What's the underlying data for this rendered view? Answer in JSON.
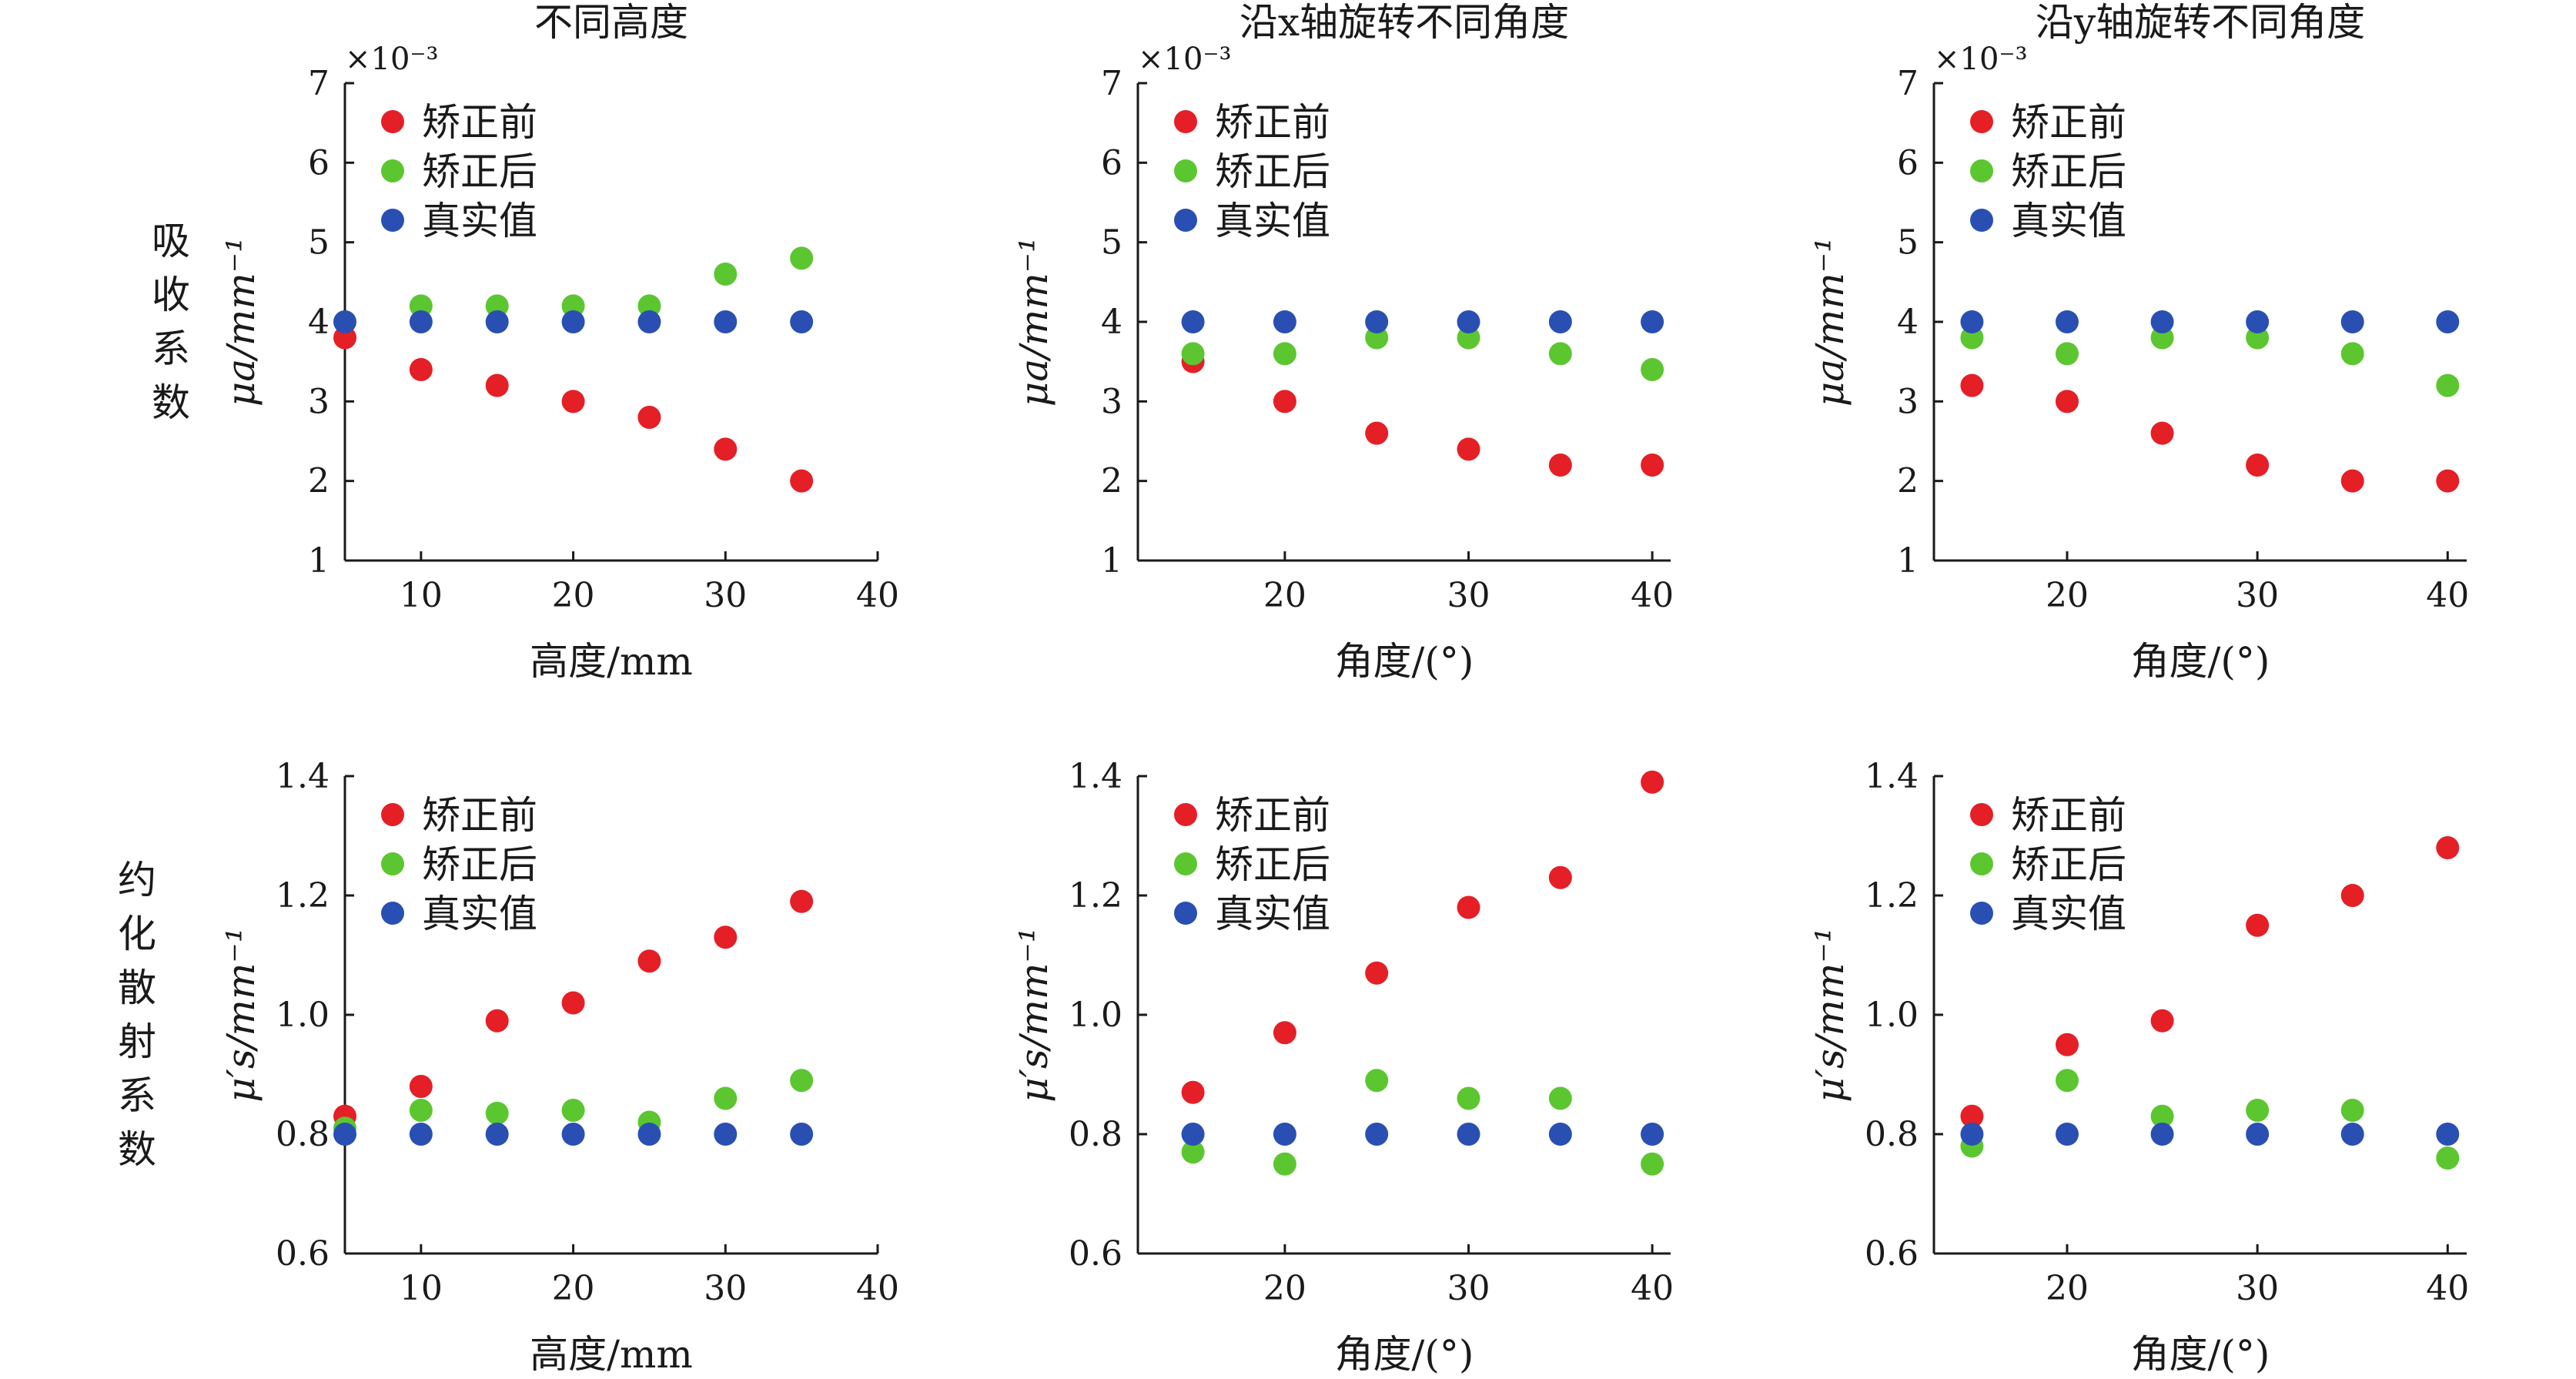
{
  "row_labels": [
    "吸\n收\n系\n数",
    "约\n化\n散\n射\n系\n数"
  ],
  "legend": [
    {
      "label": "矫正前",
      "color": "#e41f26"
    },
    {
      "label": "矫正后",
      "color": "#5cc630"
    },
    {
      "label": "真实值",
      "color": "#2a4fb3"
    }
  ],
  "chart_data": [
    {
      "type": "scatter",
      "title": "不同高度",
      "xlabel": "高度/mm",
      "ylabel": "μa/mm⁻¹",
      "sci_multiplier": "×10⁻³",
      "xlim": [
        5,
        40
      ],
      "ylim": [
        1,
        7
      ],
      "xticks": [
        10,
        20,
        30,
        40
      ],
      "yticks": [
        1,
        2,
        3,
        4,
        5,
        6,
        7
      ],
      "ytick_decimals": 0,
      "series": [
        {
          "name": "矫正前",
          "x": [
            5,
            10,
            15,
            20,
            25,
            30,
            35
          ],
          "y": [
            3.8,
            3.4,
            3.2,
            3.0,
            2.8,
            2.4,
            2.0
          ]
        },
        {
          "name": "矫正后",
          "x": [
            10,
            15,
            20,
            25,
            30,
            35
          ],
          "y": [
            4.2,
            4.2,
            4.2,
            4.2,
            4.6,
            4.8
          ]
        },
        {
          "name": "真实值",
          "x": [
            5,
            10,
            15,
            20,
            25,
            30,
            35
          ],
          "y": [
            4.0,
            4.0,
            4.0,
            4.0,
            4.0,
            4.0,
            4.0
          ]
        }
      ]
    },
    {
      "type": "scatter",
      "title": "沿x轴旋转不同角度",
      "xlabel": "角度/(°)",
      "ylabel": "μa/mm⁻¹",
      "sci_multiplier": "×10⁻³",
      "xlim": [
        12,
        41
      ],
      "ylim": [
        1,
        7
      ],
      "xticks": [
        20,
        30,
        40
      ],
      "yticks": [
        1,
        2,
        3,
        4,
        5,
        6,
        7
      ],
      "ytick_decimals": 0,
      "series": [
        {
          "name": "矫正前",
          "x": [
            15,
            20,
            25,
            30,
            35,
            40
          ],
          "y": [
            3.5,
            3.0,
            2.6,
            2.4,
            2.2,
            2.2
          ]
        },
        {
          "name": "矫正后",
          "x": [
            15,
            20,
            25,
            30,
            35,
            40
          ],
          "y": [
            3.6,
            3.6,
            3.8,
            3.8,
            3.6,
            3.4
          ]
        },
        {
          "name": "真实值",
          "x": [
            15,
            20,
            25,
            30,
            35,
            40
          ],
          "y": [
            4.0,
            4.0,
            4.0,
            4.0,
            4.0,
            4.0
          ]
        }
      ]
    },
    {
      "type": "scatter",
      "title": "沿y轴旋转不同角度",
      "xlabel": "角度/(°)",
      "ylabel": "μa/mm⁻¹",
      "sci_multiplier": "×10⁻³",
      "xlim": [
        13,
        41
      ],
      "ylim": [
        1,
        7
      ],
      "xticks": [
        20,
        30,
        40
      ],
      "yticks": [
        1,
        2,
        3,
        4,
        5,
        6,
        7
      ],
      "ytick_decimals": 0,
      "series": [
        {
          "name": "矫正前",
          "x": [
            15,
            20,
            25,
            30,
            35,
            40
          ],
          "y": [
            3.2,
            3.0,
            2.6,
            2.2,
            2.0,
            2.0
          ]
        },
        {
          "name": "矫正后",
          "x": [
            15,
            20,
            25,
            30,
            35,
            40
          ],
          "y": [
            3.8,
            3.6,
            3.8,
            3.8,
            3.6,
            3.2
          ]
        },
        {
          "name": "真实值",
          "x": [
            15,
            20,
            25,
            30,
            35,
            40
          ],
          "y": [
            4.0,
            4.0,
            4.0,
            4.0,
            4.0,
            4.0
          ]
        }
      ]
    },
    {
      "type": "scatter",
      "title": "",
      "xlabel": "高度/mm",
      "ylabel": "μ′s/mm⁻¹",
      "sci_multiplier": "",
      "xlim": [
        5,
        40
      ],
      "ylim": [
        0.6,
        1.4
      ],
      "xticks": [
        10,
        20,
        30,
        40
      ],
      "yticks": [
        0.6,
        0.8,
        1.0,
        1.2,
        1.4
      ],
      "ytick_decimals": 1,
      "series": [
        {
          "name": "矫正前",
          "x": [
            5,
            10,
            15,
            20,
            25,
            30,
            35
          ],
          "y": [
            0.83,
            0.88,
            0.99,
            1.02,
            1.09,
            1.13,
            1.19
          ]
        },
        {
          "name": "矫正后",
          "x": [
            5,
            10,
            15,
            20,
            25,
            30,
            35
          ],
          "y": [
            0.81,
            0.84,
            0.835,
            0.84,
            0.82,
            0.86,
            0.89
          ]
        },
        {
          "name": "真实值",
          "x": [
            5,
            10,
            15,
            20,
            25,
            30,
            35
          ],
          "y": [
            0.8,
            0.8,
            0.8,
            0.8,
            0.8,
            0.8,
            0.8
          ]
        }
      ]
    },
    {
      "type": "scatter",
      "title": "",
      "xlabel": "角度/(°)",
      "ylabel": "μ′s/mm⁻¹",
      "sci_multiplier": "",
      "xlim": [
        12,
        41
      ],
      "ylim": [
        0.6,
        1.4
      ],
      "xticks": [
        20,
        30,
        40
      ],
      "yticks": [
        0.6,
        0.8,
        1.0,
        1.2,
        1.4
      ],
      "ytick_decimals": 1,
      "series": [
        {
          "name": "矫正前",
          "x": [
            15,
            20,
            25,
            30,
            35,
            40
          ],
          "y": [
            0.87,
            0.97,
            1.07,
            1.18,
            1.23,
            1.39
          ]
        },
        {
          "name": "矫正后",
          "x": [
            15,
            20,
            25,
            30,
            35,
            40
          ],
          "y": [
            0.77,
            0.75,
            0.89,
            0.86,
            0.86,
            0.75
          ]
        },
        {
          "name": "真实值",
          "x": [
            15,
            20,
            25,
            30,
            35,
            40
          ],
          "y": [
            0.8,
            0.8,
            0.8,
            0.8,
            0.8,
            0.8
          ]
        }
      ]
    },
    {
      "type": "scatter",
      "title": "",
      "xlabel": "角度/(°)",
      "ylabel": "μ′s/mm⁻¹",
      "sci_multiplier": "",
      "xlim": [
        13,
        41
      ],
      "ylim": [
        0.6,
        1.4
      ],
      "xticks": [
        20,
        30,
        40
      ],
      "yticks": [
        0.6,
        0.8,
        1.0,
        1.2,
        1.4
      ],
      "ytick_decimals": 1,
      "series": [
        {
          "name": "矫正前",
          "x": [
            15,
            20,
            25,
            30,
            35,
            40
          ],
          "y": [
            0.83,
            0.95,
            0.99,
            1.15,
            1.2,
            1.28
          ]
        },
        {
          "name": "矫正后",
          "x": [
            15,
            20,
            25,
            30,
            35,
            40
          ],
          "y": [
            0.78,
            0.89,
            0.83,
            0.84,
            0.84,
            0.76
          ]
        },
        {
          "name": "真实值",
          "x": [
            15,
            20,
            25,
            30,
            35,
            40
          ],
          "y": [
            0.8,
            0.8,
            0.8,
            0.8,
            0.8,
            0.8
          ]
        }
      ]
    }
  ]
}
